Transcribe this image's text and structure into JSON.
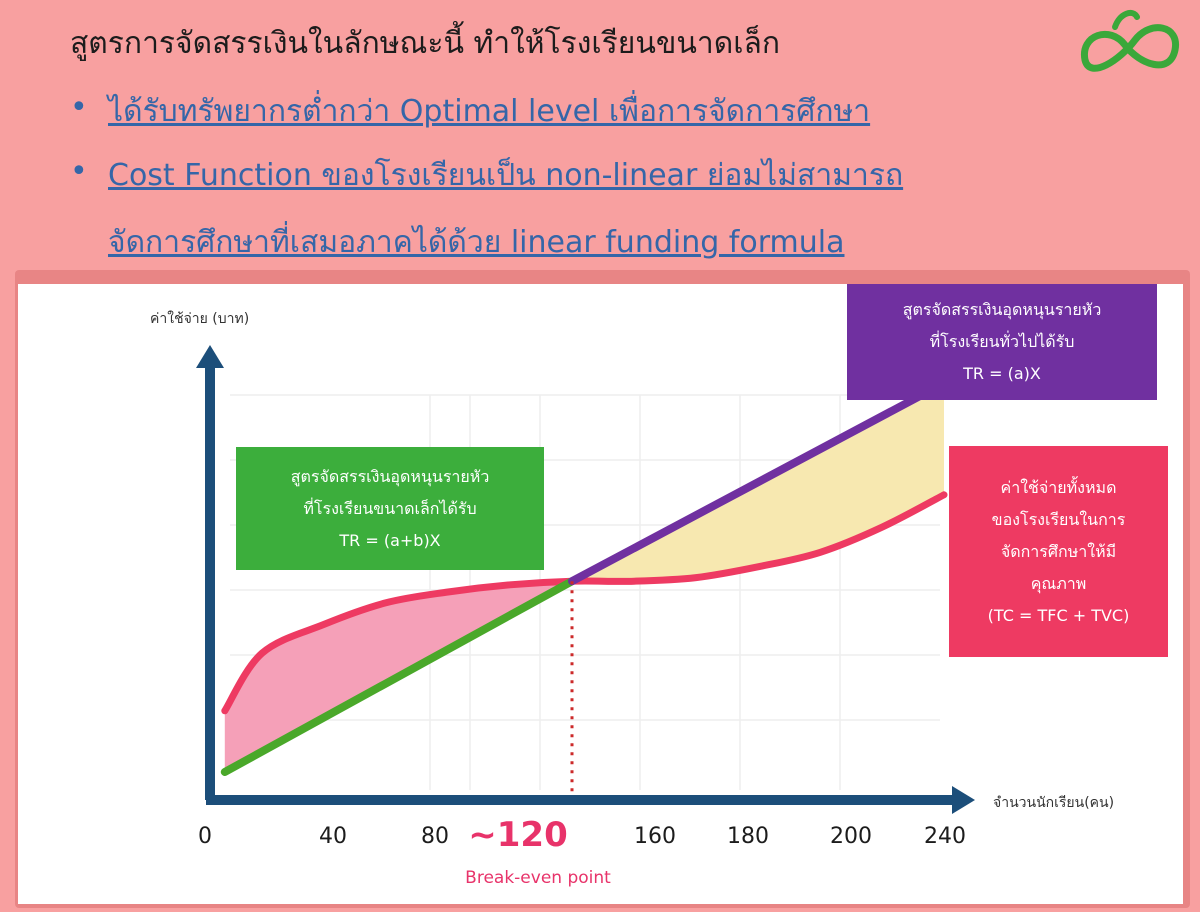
{
  "header": {
    "title": "สูตรการจัดสรรเงินในลักษณะนี้ ทำให้โรงเรียนขนาดเล็ก",
    "bullets": [
      {
        "lines": [
          "ได้รับทรัพยากรต่ำกว่า Optimal level เพื่อการจัดการศึกษา"
        ]
      },
      {
        "lines": [
          "Cost Function ของโรงเรียนเป็น non-linear ย่อมไม่สามารถ",
          "จัดการศึกษาที่เสมอภาคได้ด้วย linear funding formula"
        ]
      }
    ],
    "bullet_symbol": "•",
    "logo_icon": "green-swirl-logo"
  },
  "colors": {
    "background": "#f8a0a0",
    "title_text": "#1c1c1c",
    "bullet_text": "#3566a8",
    "axis": "#1c4e7a",
    "green_line": "#4aa82a",
    "purple_line": "#7030a0",
    "red_curve": "#ee3a62",
    "pink_fill": "#f5a0b8",
    "yellow_fill": "#f7e8b0",
    "break_even": "#e8336a"
  },
  "chart_data": {
    "type": "line",
    "ylabel": "ค่าใช้จ่าย (บาท)",
    "xlabel": "จำนวนนักเรียน(คน)",
    "x_ticks": [
      "0",
      "40",
      "80",
      "160",
      "180",
      "200",
      "240"
    ],
    "break_even": {
      "label": "~120",
      "caption": "Break-even point",
      "x": 120
    },
    "series": [
      {
        "name": "TR = (a+b)X",
        "type": "linear",
        "x": [
          8,
          120
        ],
        "y": [
          5,
          58
        ]
      },
      {
        "name": "TR = (a)X",
        "type": "linear",
        "x": [
          120,
          240
        ],
        "y": [
          58,
          113
        ]
      },
      {
        "name": "TC = TFC + TVC",
        "type": "curve",
        "x": [
          8,
          20,
          40,
          60,
          80,
          100,
          120,
          140,
          160,
          180,
          200,
          220,
          240
        ],
        "y": [
          22,
          38,
          46,
          52,
          55,
          57,
          58,
          58,
          59,
          62,
          66,
          73,
          82
        ]
      }
    ],
    "grid": true
  },
  "boxes": {
    "green": {
      "lines": [
        "สูตรจัดสรรเงินอุดหนุนรายหัว",
        "ที่โรงเรียนขนาดเล็กได้รับ",
        "TR = (a+b)X"
      ],
      "color": "#3cae3c"
    },
    "purple": {
      "lines": [
        "สูตรจัดสรรเงินอุดหนุนรายหัว",
        "ที่โรงเรียนทั่วไปได้รับ",
        "TR = (a)X"
      ],
      "color": "#7030a0"
    },
    "red": {
      "lines": [
        "ค่าใช้จ่ายทั้งหมด",
        "ของโรงเรียนในการ",
        "จัดการศึกษาให้มี",
        "คุณภาพ",
        "(TC = TFC + TVC)"
      ],
      "color": "#ee3a62"
    }
  }
}
